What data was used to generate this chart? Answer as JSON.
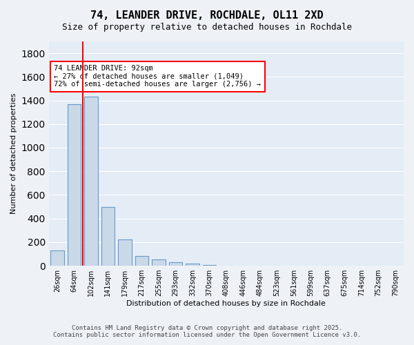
{
  "title": "74, LEANDER DRIVE, ROCHDALE, OL11 2XD",
  "subtitle": "Size of property relative to detached houses in Rochdale",
  "xlabel": "Distribution of detached houses by size in Rochdale",
  "ylabel": "Number of detached properties",
  "bar_values": [
    130,
    1370,
    1430,
    500,
    225,
    80,
    55,
    30,
    20,
    5,
    3,
    2,
    1,
    1,
    0,
    0,
    0,
    0,
    0,
    0,
    0
  ],
  "categories": [
    "26sqm",
    "64sqm",
    "102sqm",
    "141sqm",
    "179sqm",
    "217sqm",
    "255sqm",
    "293sqm",
    "332sqm",
    "370sqm",
    "408sqm",
    "446sqm",
    "484sqm",
    "523sqm",
    "561sqm",
    "599sqm",
    "637sqm",
    "675sqm",
    "714sqm",
    "752sqm",
    "790sqm"
  ],
  "bar_color": "#c9d9e8",
  "bar_edge_color": "#6699cc",
  "ylim": [
    0,
    1900
  ],
  "yticks": [
    0,
    200,
    400,
    600,
    800,
    1000,
    1200,
    1400,
    1600,
    1800
  ],
  "property_label": "74 LEANDER DRIVE: 92sqm",
  "pct_smaller": "← 27% of detached houses are smaller (1,049)",
  "pct_larger": "72% of semi-detached houses are larger (2,756) →",
  "vline_x_index": 2,
  "footer_line1": "Contains HM Land Registry data © Crown copyright and database right 2025.",
  "footer_line2": "Contains public sector information licensed under the Open Government Licence v3.0.",
  "bg_color": "#eef2f7",
  "plot_bg_color": "#e4edf5"
}
